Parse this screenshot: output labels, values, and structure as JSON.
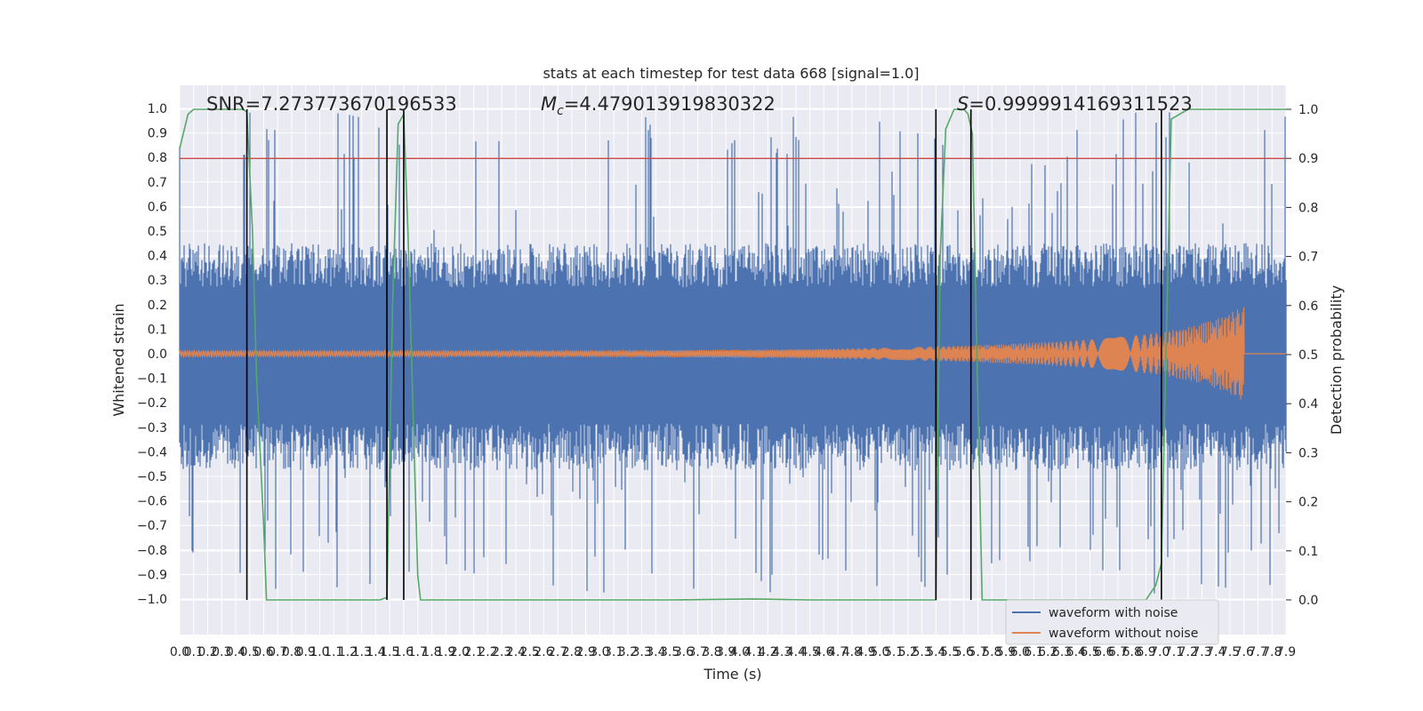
{
  "chart_data": {
    "type": "line",
    "title": "stats at each timestep for test data 668 [signal=1.0]",
    "xlabel": "Time (s)",
    "ylabel": "Whitened strain",
    "ylabel_right": "Detection probability",
    "xlim": [
      0.0,
      7.9
    ],
    "ylim": [
      -1.1,
      1.1
    ],
    "ylim_right": [
      -0.05,
      1.05
    ],
    "grid": true,
    "annotations": {
      "snr": "SNR=7.273773670196533",
      "mc_symbol": "M",
      "mc_sub": "c",
      "mc_value": "=4.479013919830322",
      "s_symbol": "S",
      "s_value": "=0.9999914169311523"
    },
    "threshold": {
      "axis": "right",
      "value": 0.9,
      "color": "#c44e52"
    },
    "vertical_lines": [
      0.48,
      1.48,
      1.6,
      5.4,
      5.65,
      7.01
    ],
    "noise_envelope": {
      "name": "waveform with noise",
      "color": "#4c72b0",
      "band": [
        -0.38,
        0.36
      ],
      "peak_max": 0.99,
      "peak_min": -0.98
    },
    "clean_waveform": {
      "name": "waveform without noise",
      "color": "#dd8452",
      "amplitude_start": 0.012,
      "amplitude_peak": 0.19,
      "merger_time": 7.6
    },
    "detection_probability": {
      "name": "detection probability",
      "color": "#55a868",
      "x": [
        0.0,
        0.06,
        0.1,
        0.15,
        0.3,
        0.45,
        0.48,
        0.52,
        0.55,
        0.6,
        0.62,
        0.9,
        1.2,
        1.43,
        1.48,
        1.52,
        1.56,
        1.6,
        1.63,
        1.7,
        1.72,
        2.5,
        3.5,
        4.1,
        4.5,
        5.3,
        5.4,
        5.43,
        5.47,
        5.53,
        5.6,
        5.63,
        5.66,
        5.7,
        5.73,
        5.9,
        6.5,
        6.9,
        6.97,
        7.01,
        7.05,
        7.08,
        7.2,
        7.5,
        7.9
      ],
      "y": [
        0.92,
        0.99,
        1.0,
        1.0,
        1.0,
        1.0,
        0.995,
        0.75,
        0.45,
        0.15,
        0.0,
        0.0,
        0.0,
        0.0,
        0.005,
        0.6,
        0.97,
        0.99,
        0.75,
        0.05,
        0.0,
        0.0,
        0.0,
        0.002,
        0.0,
        0.0,
        0.0,
        0.7,
        0.96,
        1.0,
        1.0,
        0.99,
        0.95,
        0.4,
        0.0,
        0.0,
        0.0,
        0.0,
        0.03,
        0.075,
        0.6,
        0.98,
        1.0,
        1.0,
        1.0
      ]
    },
    "x_ticks": [
      "0.0",
      "0.1",
      "0.2",
      "0.3",
      "0.4",
      "0.5",
      "0.6",
      "0.7",
      "0.8",
      "0.9",
      "1.0",
      "1.1",
      "1.2",
      "1.3",
      "1.4",
      "1.5",
      "1.6",
      "1.7",
      "1.8",
      "1.9",
      "2.0",
      "2.1",
      "2.2",
      "2.3",
      "2.4",
      "2.5",
      "2.6",
      "2.7",
      "2.8",
      "2.9",
      "3.0",
      "3.1",
      "3.2",
      "3.3",
      "3.4",
      "3.5",
      "3.6",
      "3.7",
      "3.8",
      "3.9",
      "4.0",
      "4.1",
      "4.2",
      "4.3",
      "4.4",
      "4.5",
      "4.6",
      "4.7",
      "4.8",
      "4.9",
      "5.0",
      "5.1",
      "5.2",
      "5.3",
      "5.4",
      "5.5",
      "5.6",
      "5.7",
      "5.8",
      "5.9",
      "6.0",
      "6.1",
      "6.2",
      "6.3",
      "6.4",
      "6.5",
      "6.6",
      "6.7",
      "6.8",
      "6.9",
      "7.0",
      "7.1",
      "7.2",
      "7.3",
      "7.4",
      "7.5",
      "7.6",
      "7.7",
      "7.8",
      "7.9"
    ],
    "y_ticks_left": [
      "1.0",
      "0.9",
      "0.8",
      "0.7",
      "0.6",
      "0.5",
      "0.4",
      "0.3",
      "0.2",
      "0.1",
      "0.0",
      "−0.1",
      "−0.2",
      "−0.3",
      "−0.4",
      "−0.5",
      "−0.6",
      "−0.7",
      "−0.8",
      "−0.9",
      "−1.0"
    ],
    "y_ticks_right": [
      "1.0",
      "0.9",
      "0.8",
      "0.7",
      "0.6",
      "0.5",
      "0.4",
      "0.3",
      "0.2",
      "0.1",
      "0.0"
    ],
    "legend": {
      "placement": "bottom-right",
      "entries": [
        {
          "label": "waveform with noise",
          "color": "#4c72b0"
        },
        {
          "label": "waveform without noise",
          "color": "#dd8452"
        }
      ]
    }
  }
}
